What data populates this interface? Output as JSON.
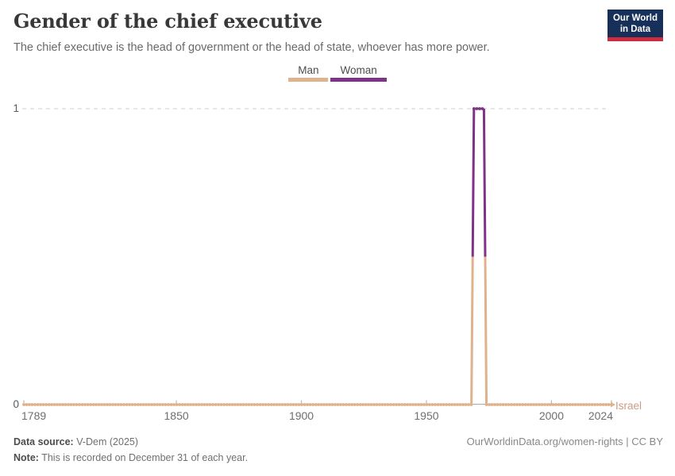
{
  "header": {
    "title": "Gender of the chief executive",
    "subtitle": "The chief executive is the head of government or the head of state, whoever has more power.",
    "logo": {
      "line1": "Our World",
      "line2": "in Data",
      "bg": "#16305a",
      "accent": "#cf2b3e"
    }
  },
  "legend": {
    "items": [
      {
        "label": "Man",
        "color": "#dfb28e"
      },
      {
        "label": "Woman",
        "color": "#7e3389"
      }
    ]
  },
  "chart_data": {
    "type": "line",
    "title": "Gender of the chief executive",
    "entity_label": "Israel",
    "xlim": [
      1789,
      2024
    ],
    "ylim": [
      0,
      1
    ],
    "x_ticks": [
      1789,
      1850,
      1900,
      1950,
      2000,
      2024
    ],
    "y_ticks": [
      0,
      1
    ],
    "grid": "dashed horizontal gridline at y=1, gray axis line with ticks at y=0",
    "value_meaning": {
      "0": "Man",
      "1": "Woman"
    },
    "colors": {
      "Man": "#dfb28e",
      "Woman": "#7e3389",
      "grid": "#cccccc",
      "axis": "#a9a9a9"
    },
    "series": [
      {
        "name": "Israel",
        "segments": [
          {
            "gender": "Man",
            "value": 0,
            "start_year": 1789,
            "end_year": 1968
          },
          {
            "gender": "Woman",
            "value": 1,
            "start_year": 1969,
            "end_year": 1973
          },
          {
            "gender": "Man",
            "value": 0,
            "start_year": 1974,
            "end_year": 2024
          }
        ]
      }
    ]
  },
  "footer": {
    "source_label": "Data source:",
    "source_value": " V-Dem (2025)",
    "note_label": "Note:",
    "note_value": " This is recorded on December 31 of each year.",
    "link": "OurWorldinData.org/women-rights | CC BY"
  }
}
